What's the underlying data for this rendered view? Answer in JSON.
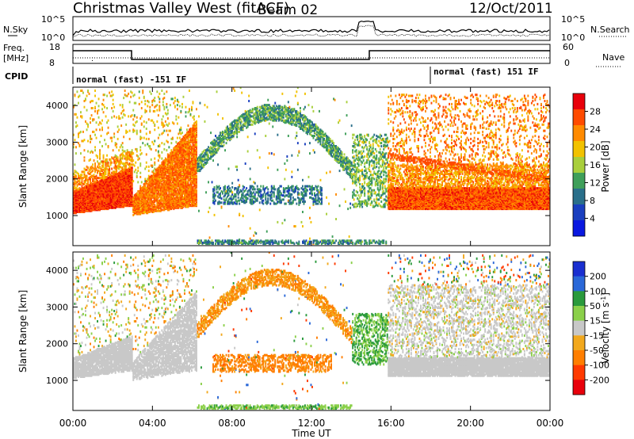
{
  "header": {
    "title": "Christmas Valley West (fitACF)",
    "beam": "Beam 02",
    "date": "12/Oct/2011"
  },
  "panels": {
    "nsky_label": "N.Sky",
    "nsearch_label": "N.Search",
    "nsky_ticks": [
      "10^5",
      "10^0"
    ],
    "nsearch_ticks": [
      "10^5",
      "10^0"
    ],
    "freq_label_1": "Freq.",
    "freq_label_2": "[MHz]",
    "freq_ticks": [
      "18",
      "8"
    ],
    "nave_label": "Nave",
    "nave_ticks": [
      "60",
      "0"
    ],
    "cpid_label": "CPID",
    "cpid_segments": [
      {
        "label": "normal (fast) -151 IF",
        "start_hour": 0,
        "end_hour": 18.2
      },
      {
        "label": "normal (fast) 151 IF",
        "start_hour": 18.2,
        "end_hour": 24
      }
    ]
  },
  "time_axis": {
    "xlabel": "Time UT",
    "ticks": [
      "00:00",
      "04:00",
      "08:00",
      "12:00",
      "16:00",
      "20:00",
      "00:00"
    ]
  },
  "chart_data": [
    {
      "type": "heatmap",
      "name": "power",
      "ylabel": "Slant Range [km]",
      "yticks": [
        1000,
        2000,
        3000,
        4000
      ],
      "ylim": [
        180,
        4500
      ],
      "xlim_hours": [
        0,
        24
      ],
      "colorbar": {
        "label": "Power [dB]",
        "ticks": [
          "28",
          "24",
          "20",
          "16",
          "12",
          "8",
          "4"
        ],
        "colors": [
          "#e8000b",
          "#ff4b00",
          "#ff8a00",
          "#f2c200",
          "#a9cf3c",
          "#3f9f5a",
          "#2a6f8a",
          "#1a3fbf",
          "#0a18e0"
        ]
      },
      "features": [
        {
          "region": "dense auroral band",
          "hours": [
            0,
            2.9
          ],
          "range_km": [
            1100,
            1800
          ],
          "level_db": 28
        },
        {
          "region": "dense auroral band",
          "hours": [
            3,
            6
          ],
          "range_km": [
            1050,
            1700
          ],
          "level_db": 24
        },
        {
          "region": "dense auroral band",
          "hours": [
            15.8,
            24
          ],
          "range_km": [
            1150,
            1750
          ],
          "level_db": 26
        },
        {
          "region": "ionospheric scatter",
          "hours": [
            6,
            14
          ],
          "range_km": [
            1200,
            3800
          ],
          "level_db": 10
        },
        {
          "region": "ground scatter near range",
          "hours": [
            6,
            14.5
          ],
          "range_km": [
            200,
            300
          ],
          "level_db": 8
        }
      ]
    },
    {
      "type": "heatmap",
      "name": "velocity",
      "ylabel": "Slant Range [km]",
      "yticks": [
        1000,
        2000,
        3000,
        4000
      ],
      "ylim": [
        180,
        4500
      ],
      "xlim_hours": [
        0,
        24
      ],
      "colorbar": {
        "label": "Velocity [m s^-1]",
        "ticks": [
          "200",
          "100",
          "50",
          "15",
          "-15",
          "-50",
          "-100",
          "-200"
        ],
        "colors": [
          "#1a2fd0",
          "#2a68d8",
          "#2a9a3c",
          "#8bd04a",
          "#c8c8c8",
          "#f2a81d",
          "#ff7e00",
          "#ff3a00",
          "#e8000b"
        ]
      },
      "features": [
        {
          "region": "ground scatter band",
          "hours": [
            0,
            3
          ],
          "range_km": [
            1100,
            1600
          ],
          "velocity": 0
        },
        {
          "region": "ground scatter band",
          "hours": [
            15.8,
            24
          ],
          "range_km": [
            1100,
            1600
          ],
          "velocity": 0
        },
        {
          "region": "negative flow",
          "hours": [
            7,
            13
          ],
          "range_km": [
            1200,
            1700
          ],
          "velocity": -60
        },
        {
          "region": "positive flow",
          "hours": [
            14,
            15.2
          ],
          "range_km": [
            1400,
            2800
          ],
          "velocity": 60
        }
      ]
    }
  ]
}
